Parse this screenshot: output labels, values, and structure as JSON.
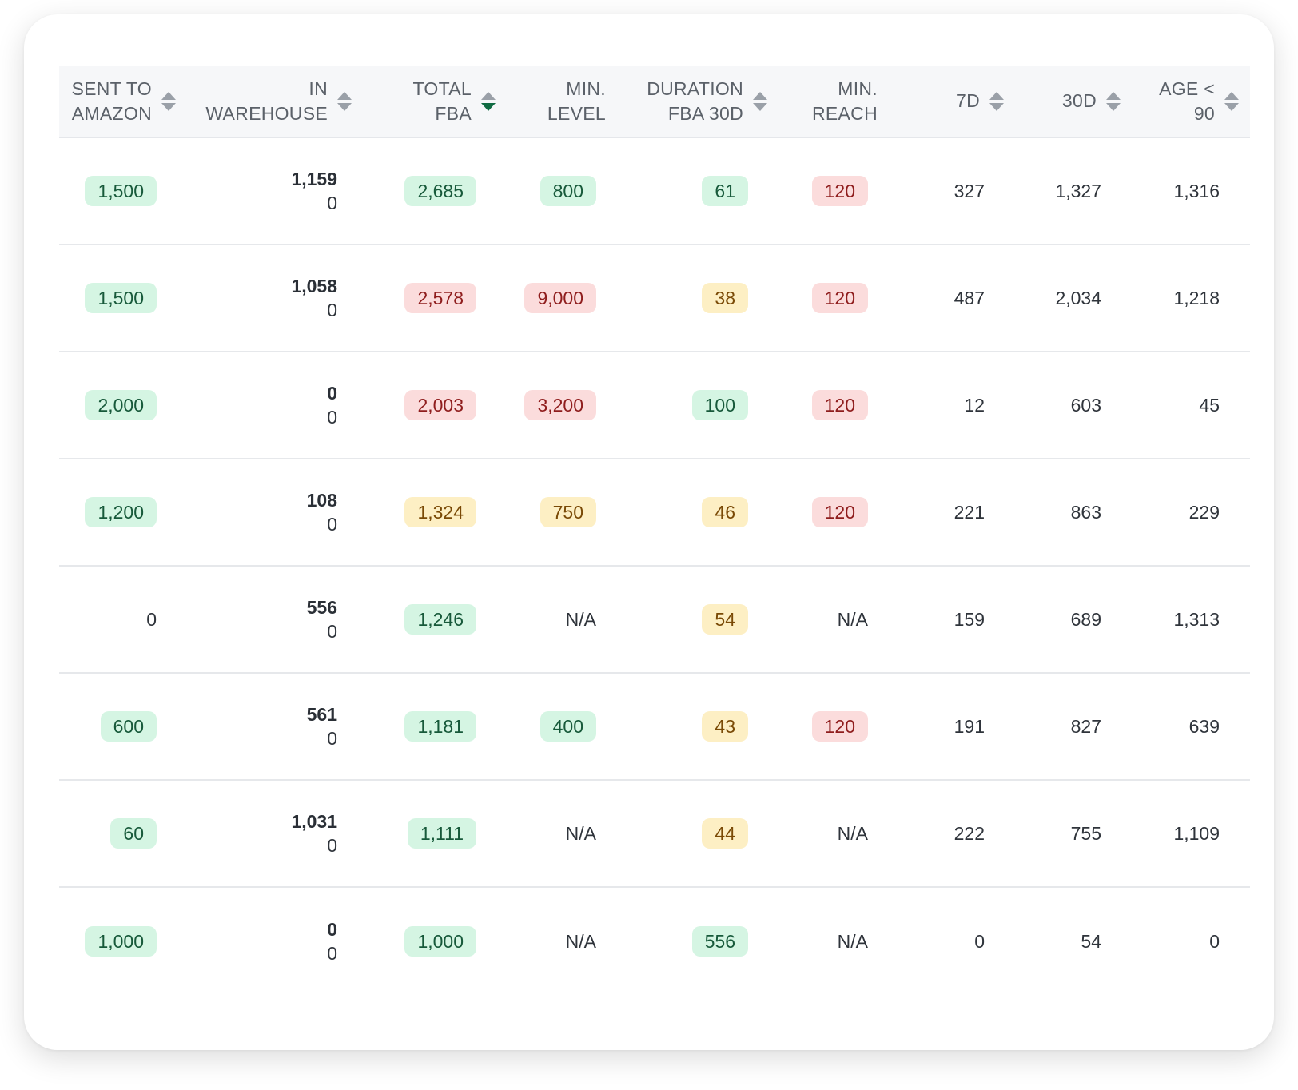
{
  "columns": [
    {
      "label": "SENT TO\nAMAZON",
      "sortable": true
    },
    {
      "label": "IN\nWAREHOUSE",
      "sortable": true
    },
    {
      "label": "TOTAL\nFBA",
      "sortable": true,
      "sorted": "desc"
    },
    {
      "label": "MIN.\nLEVEL",
      "sortable": false
    },
    {
      "label": "DURATION\nFBA 30D",
      "sortable": true
    },
    {
      "label": "MIN.\nREACH",
      "sortable": false
    },
    {
      "label": "7D",
      "sortable": true
    },
    {
      "label": "30D",
      "sortable": true
    },
    {
      "label": "AGE <\n90",
      "sortable": true
    }
  ],
  "colors": {
    "green": "#d5f5e3",
    "red": "#fbdcdc",
    "yellow": "#fdefc4"
  },
  "rows": [
    {
      "sent_to_amazon": {
        "v": "1,500",
        "c": "green"
      },
      "in_warehouse": [
        "1,159",
        "0"
      ],
      "total_fba": {
        "v": "2,685",
        "c": "green"
      },
      "min_level": {
        "v": "800",
        "c": "green"
      },
      "duration_fba_30d": {
        "v": "61",
        "c": "green"
      },
      "min_reach": {
        "v": "120",
        "c": "red"
      },
      "d7": "327",
      "d30": "1,327",
      "age_lt_90": "1,316"
    },
    {
      "sent_to_amazon": {
        "v": "1,500",
        "c": "green"
      },
      "in_warehouse": [
        "1,058",
        "0"
      ],
      "total_fba": {
        "v": "2,578",
        "c": "red"
      },
      "min_level": {
        "v": "9,000",
        "c": "red"
      },
      "duration_fba_30d": {
        "v": "38",
        "c": "yellow"
      },
      "min_reach": {
        "v": "120",
        "c": "red"
      },
      "d7": "487",
      "d30": "2,034",
      "age_lt_90": "1,218"
    },
    {
      "sent_to_amazon": {
        "v": "2,000",
        "c": "green"
      },
      "in_warehouse": [
        "0",
        "0"
      ],
      "total_fba": {
        "v": "2,003",
        "c": "red"
      },
      "min_level": {
        "v": "3,200",
        "c": "red"
      },
      "duration_fba_30d": {
        "v": "100",
        "c": "green"
      },
      "min_reach": {
        "v": "120",
        "c": "red"
      },
      "d7": "12",
      "d30": "603",
      "age_lt_90": "45"
    },
    {
      "sent_to_amazon": {
        "v": "1,200",
        "c": "green"
      },
      "in_warehouse": [
        "108",
        "0"
      ],
      "total_fba": {
        "v": "1,324",
        "c": "yellow"
      },
      "min_level": {
        "v": "750",
        "c": "yellow"
      },
      "duration_fba_30d": {
        "v": "46",
        "c": "yellow"
      },
      "min_reach": {
        "v": "120",
        "c": "red"
      },
      "d7": "221",
      "d30": "863",
      "age_lt_90": "229"
    },
    {
      "sent_to_amazon": {
        "v": "0",
        "c": ""
      },
      "in_warehouse": [
        "556",
        "0"
      ],
      "total_fba": {
        "v": "1,246",
        "c": "green"
      },
      "min_level": {
        "v": "N/A",
        "c": ""
      },
      "duration_fba_30d": {
        "v": "54",
        "c": "yellow"
      },
      "min_reach": {
        "v": "N/A",
        "c": ""
      },
      "d7": "159",
      "d30": "689",
      "age_lt_90": "1,313"
    },
    {
      "sent_to_amazon": {
        "v": "600",
        "c": "green"
      },
      "in_warehouse": [
        "561",
        "0"
      ],
      "total_fba": {
        "v": "1,181",
        "c": "green"
      },
      "min_level": {
        "v": "400",
        "c": "green"
      },
      "duration_fba_30d": {
        "v": "43",
        "c": "yellow"
      },
      "min_reach": {
        "v": "120",
        "c": "red"
      },
      "d7": "191",
      "d30": "827",
      "age_lt_90": "639"
    },
    {
      "sent_to_amazon": {
        "v": "60",
        "c": "green"
      },
      "in_warehouse": [
        "1,031",
        "0"
      ],
      "total_fba": {
        "v": "1,111",
        "c": "green"
      },
      "min_level": {
        "v": "N/A",
        "c": ""
      },
      "duration_fba_30d": {
        "v": "44",
        "c": "yellow"
      },
      "min_reach": {
        "v": "N/A",
        "c": ""
      },
      "d7": "222",
      "d30": "755",
      "age_lt_90": "1,109"
    },
    {
      "sent_to_amazon": {
        "v": "1,000",
        "c": "green"
      },
      "in_warehouse": [
        "0",
        "0"
      ],
      "total_fba": {
        "v": "1,000",
        "c": "green"
      },
      "min_level": {
        "v": "N/A",
        "c": ""
      },
      "duration_fba_30d": {
        "v": "556",
        "c": "green"
      },
      "min_reach": {
        "v": "N/A",
        "c": ""
      },
      "d7": "0",
      "d30": "54",
      "age_lt_90": "0"
    }
  ]
}
